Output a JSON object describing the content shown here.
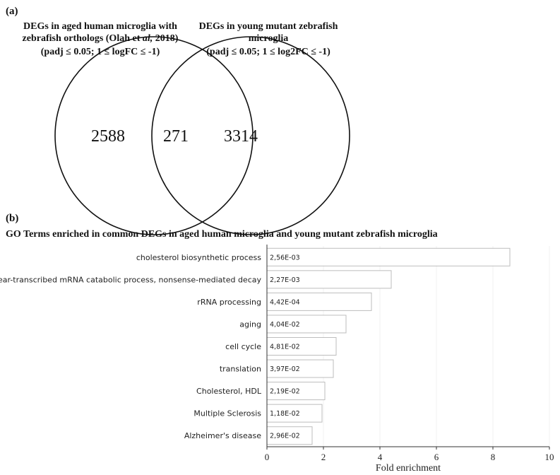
{
  "panel_a": {
    "label": "(a)",
    "left_title": [
      "DEGs in aged human microglia with",
      "zebrafish orthologs (Olah et al, 2018)",
      "(padj ≤ 0.05; 1 ≤ logFC ≤ -1)"
    ],
    "right_title": [
      "DEGs in young mutant zebrafish",
      "microglia",
      "(padj ≤ 0.05; 1 ≤ log2FC ≤ -1)"
    ],
    "left_only": "2588",
    "overlap": "271",
    "right_only": "3314"
  },
  "panel_b": {
    "label": "(b)",
    "title": "GO Terms enriched in common DEGs in aged human microglia and young mutant zebrafish microglia"
  },
  "chart_data": {
    "type": "bar",
    "orientation": "horizontal",
    "categories": [
      "cholesterol biosynthetic process",
      "nuclear-transcribed mRNA catabolic process, nonsense-mediated decay",
      "rRNA processing",
      "aging",
      "cell cycle",
      "translation",
      "Cholesterol, HDL",
      "Multiple Sclerosis",
      "Alzheimer's disease"
    ],
    "values": [
      8.6,
      4.4,
      3.7,
      2.8,
      2.45,
      2.35,
      2.05,
      1.95,
      1.6
    ],
    "data_labels": [
      "2,56E-03",
      "2,27E-03",
      "4,42E-04",
      "4,04E-02",
      "4,81E-02",
      "3,97E-02",
      "2,19E-02",
      "1,18E-02",
      "2,96E-02"
    ],
    "xlabel": "Fold enrichment",
    "xlim": [
      0,
      10
    ],
    "xticks": [
      "0",
      "2",
      "4",
      "6",
      "8",
      "10"
    ],
    "grid": true,
    "bar_fill": "#ffffff",
    "bar_stroke": "#bdbdbd"
  }
}
